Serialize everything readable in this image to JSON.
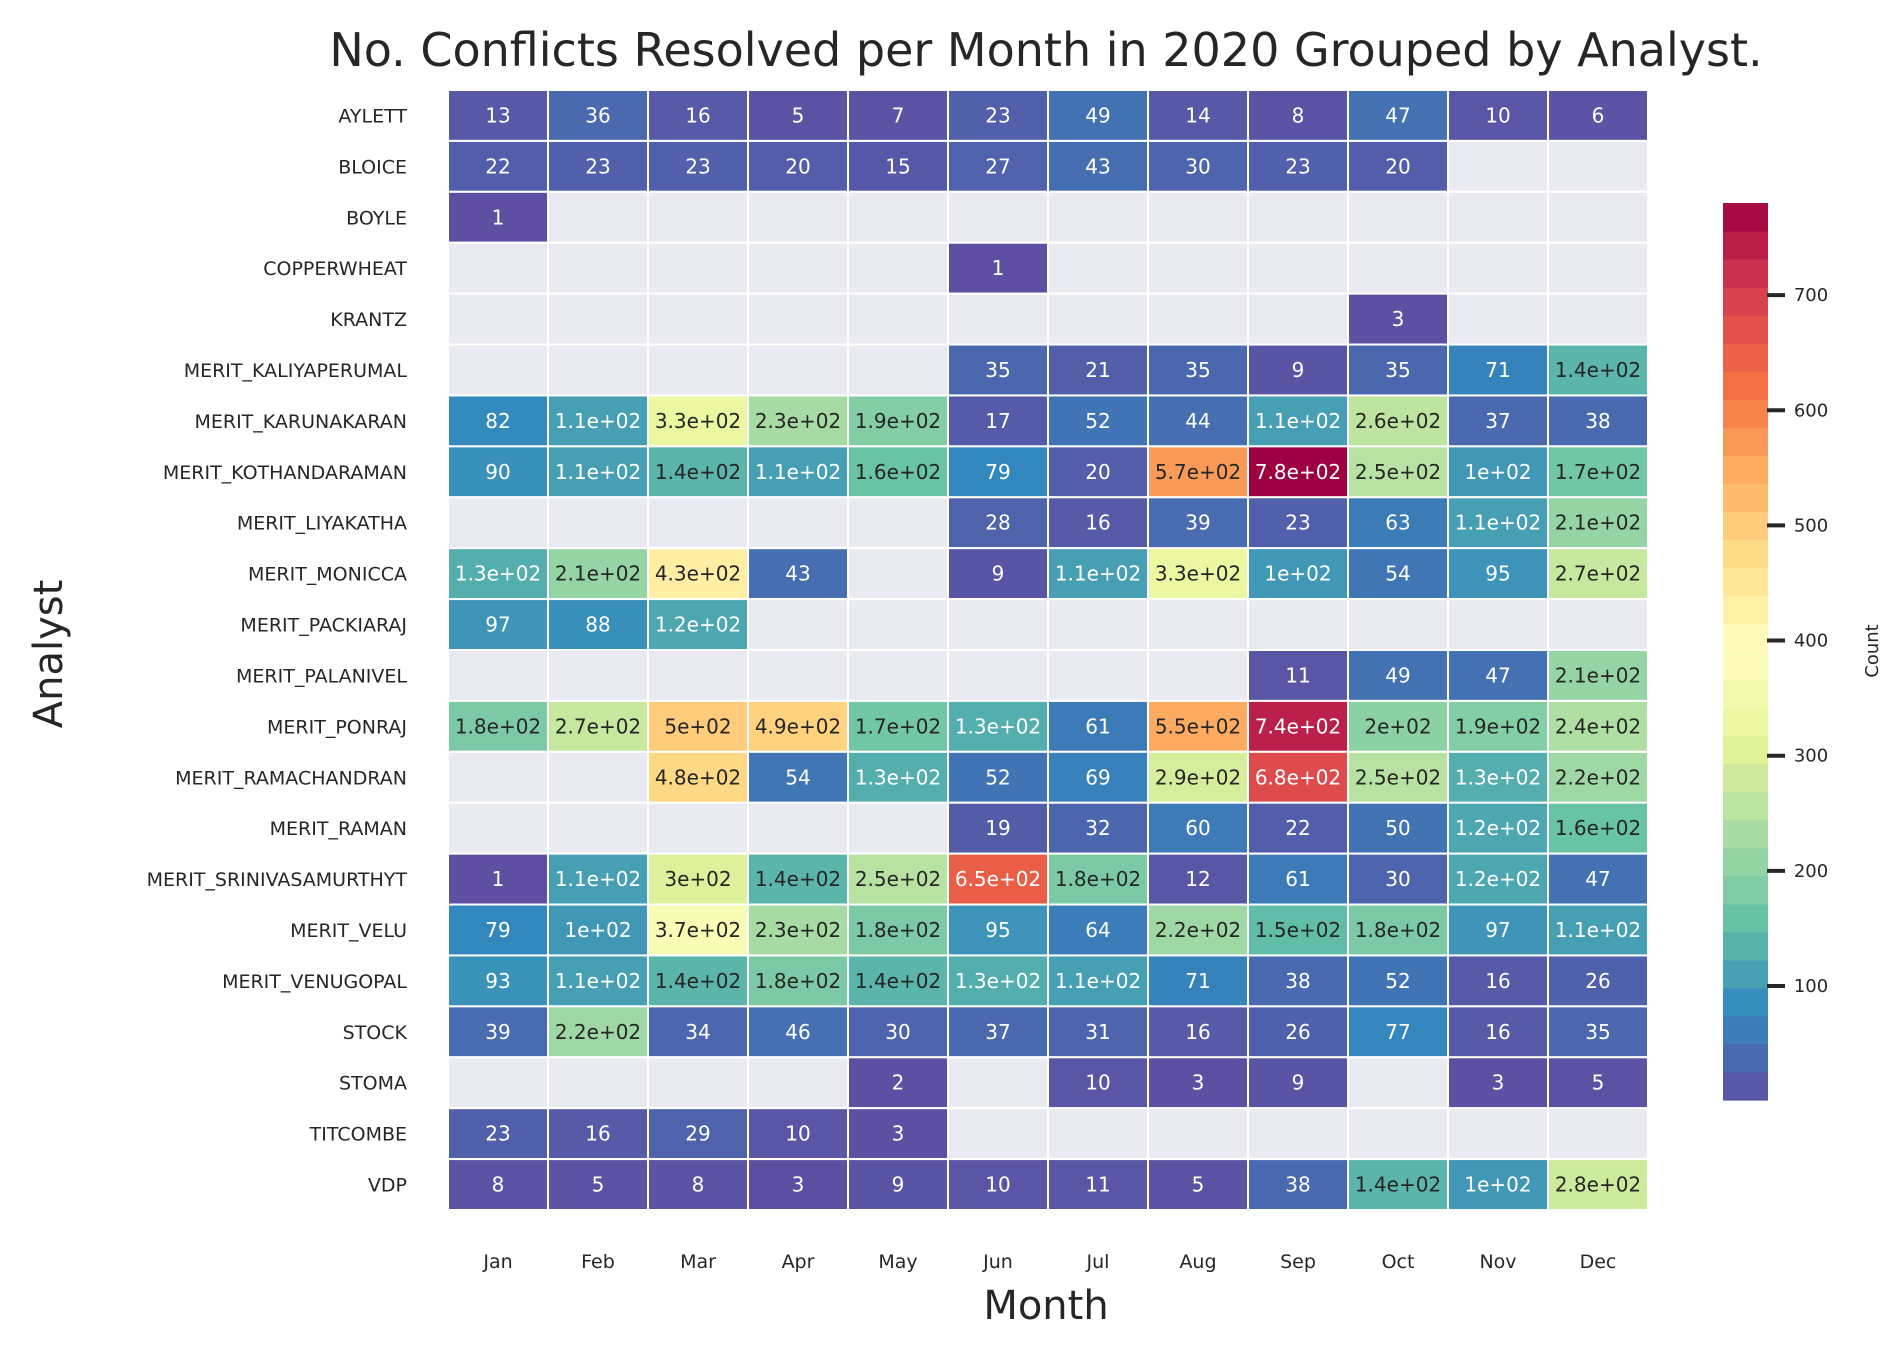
{
  "chart_data": {
    "type": "heatmap",
    "title": "No. Conflicts Resolved per Month in 2020 Grouped by Analyst.",
    "xlabel": "Month",
    "ylabel": "Analyst",
    "colorbar_label": "Count",
    "colorbar_range": [
      1,
      780
    ],
    "colorbar_ticks": [
      100,
      200,
      300,
      400,
      500,
      600,
      700
    ],
    "colorbar_tick_labels": [
      "100",
      "200",
      "300",
      "400",
      "500",
      "600",
      "700"
    ],
    "colormap": "Spectral_r",
    "missing_color": "#eaeaf2",
    "columns": [
      "Jan",
      "Feb",
      "Mar",
      "Apr",
      "May",
      "Jun",
      "Jul",
      "Aug",
      "Sep",
      "Oct",
      "Nov",
      "Dec"
    ],
    "rows": [
      "AYLETT",
      "BLOICE",
      "BOYLE",
      "COPPERWHEAT",
      "KRANTZ",
      "MERIT_KALIYAPERUMAL",
      "MERIT_KARUNAKARAN",
      "MERIT_KOTHANDARAMAN",
      "MERIT_LIYAKATHA",
      "MERIT_MONICCA",
      "MERIT_PACKIARAJ",
      "MERIT_PALANIVEL",
      "MERIT_PONRAJ",
      "MERIT_RAMACHANDRAN",
      "MERIT_RAMAN",
      "MERIT_SRINIVASAMURTHYT",
      "MERIT_VELU",
      "MERIT_VENUGOPAL",
      "STOCK",
      "STOMA",
      "TITCOMBE",
      "VDP"
    ],
    "values": [
      [
        13,
        36,
        16,
        5,
        7,
        23,
        49,
        14,
        8,
        47,
        10,
        6
      ],
      [
        22,
        23,
        23,
        20,
        15,
        27,
        43,
        30,
        23,
        20,
        null,
        null
      ],
      [
        1,
        null,
        null,
        null,
        null,
        null,
        null,
        null,
        null,
        null,
        null,
        null
      ],
      [
        null,
        null,
        null,
        null,
        null,
        1,
        null,
        null,
        null,
        null,
        null,
        null
      ],
      [
        null,
        null,
        null,
        null,
        null,
        null,
        null,
        null,
        null,
        3,
        null,
        null
      ],
      [
        null,
        null,
        null,
        null,
        null,
        35,
        21,
        35,
        9,
        35,
        71,
        140
      ],
      [
        82,
        110,
        330,
        230,
        190,
        17,
        52,
        44,
        110,
        260,
        37,
        38
      ],
      [
        90,
        110,
        140,
        110,
        160,
        79,
        20,
        570,
        780,
        250,
        100,
        170
      ],
      [
        null,
        null,
        null,
        null,
        null,
        28,
        16,
        39,
        23,
        63,
        110,
        210
      ],
      [
        130,
        210,
        430,
        43,
        null,
        9,
        110,
        330,
        100,
        54,
        95,
        270
      ],
      [
        97,
        88,
        120,
        null,
        null,
        null,
        null,
        null,
        null,
        null,
        null,
        null
      ],
      [
        null,
        null,
        null,
        null,
        null,
        null,
        null,
        null,
        11,
        49,
        47,
        210
      ],
      [
        180,
        270,
        500,
        490,
        170,
        130,
        61,
        550,
        740,
        200,
        190,
        240
      ],
      [
        null,
        null,
        480,
        54,
        130,
        52,
        69,
        290,
        680,
        250,
        130,
        220
      ],
      [
        null,
        null,
        null,
        null,
        null,
        19,
        32,
        60,
        22,
        50,
        120,
        160
      ],
      [
        1,
        110,
        300,
        140,
        250,
        650,
        180,
        12,
        61,
        30,
        120,
        47
      ],
      [
        79,
        100,
        370,
        230,
        180,
        95,
        64,
        220,
        150,
        180,
        97,
        110
      ],
      [
        93,
        110,
        140,
        180,
        140,
        130,
        110,
        71,
        38,
        52,
        16,
        26
      ],
      [
        39,
        220,
        34,
        46,
        30,
        37,
        31,
        16,
        26,
        77,
        16,
        35
      ],
      [
        null,
        null,
        null,
        null,
        2,
        null,
        10,
        3,
        9,
        null,
        3,
        5
      ],
      [
        23,
        16,
        29,
        10,
        3,
        null,
        null,
        null,
        null,
        null,
        null,
        null
      ],
      [
        8,
        5,
        8,
        3,
        9,
        10,
        11,
        5,
        38,
        140,
        100,
        280
      ]
    ],
    "labels": [
      [
        "13",
        "36",
        "16",
        "5",
        "7",
        "23",
        "49",
        "14",
        "8",
        "47",
        "10",
        "6"
      ],
      [
        "22",
        "23",
        "23",
        "20",
        "15",
        "27",
        "43",
        "30",
        "23",
        "20",
        "",
        ""
      ],
      [
        "1",
        "",
        "",
        "",
        "",
        "",
        "",
        "",
        "",
        "",
        "",
        ""
      ],
      [
        "",
        "",
        "",
        "",
        "",
        "1",
        "",
        "",
        "",
        "",
        "",
        ""
      ],
      [
        "",
        "",
        "",
        "",
        "",
        "",
        "",
        "",
        "",
        "3",
        "",
        ""
      ],
      [
        "",
        "",
        "",
        "",
        "",
        "35",
        "21",
        "35",
        "9",
        "35",
        "71",
        "1.4e+02"
      ],
      [
        "82",
        "1.1e+02",
        "3.3e+02",
        "2.3e+02",
        "1.9e+02",
        "17",
        "52",
        "44",
        "1.1e+02",
        "2.6e+02",
        "37",
        "38"
      ],
      [
        "90",
        "1.1e+02",
        "1.4e+02",
        "1.1e+02",
        "1.6e+02",
        "79",
        "20",
        "5.7e+02",
        "7.8e+02",
        "2.5e+02",
        "1e+02",
        "1.7e+02"
      ],
      [
        "",
        "",
        "",
        "",
        "",
        "28",
        "16",
        "39",
        "23",
        "63",
        "1.1e+02",
        "2.1e+02"
      ],
      [
        "1.3e+02",
        "2.1e+02",
        "4.3e+02",
        "43",
        "",
        "9",
        "1.1e+02",
        "3.3e+02",
        "1e+02",
        "54",
        "95",
        "2.7e+02"
      ],
      [
        "97",
        "88",
        "1.2e+02",
        "",
        "",
        "",
        "",
        "",
        "",
        "",
        "",
        ""
      ],
      [
        "",
        "",
        "",
        "",
        "",
        "",
        "",
        "",
        "11",
        "49",
        "47",
        "2.1e+02"
      ],
      [
        "1.8e+02",
        "2.7e+02",
        "5e+02",
        "4.9e+02",
        "1.7e+02",
        "1.3e+02",
        "61",
        "5.5e+02",
        "7.4e+02",
        "2e+02",
        "1.9e+02",
        "2.4e+02"
      ],
      [
        "",
        "",
        "4.8e+02",
        "54",
        "1.3e+02",
        "52",
        "69",
        "2.9e+02",
        "6.8e+02",
        "2.5e+02",
        "1.3e+02",
        "2.2e+02"
      ],
      [
        "",
        "",
        "",
        "",
        "",
        "19",
        "32",
        "60",
        "22",
        "50",
        "1.2e+02",
        "1.6e+02"
      ],
      [
        "1",
        "1.1e+02",
        "3e+02",
        "1.4e+02",
        "2.5e+02",
        "6.5e+02",
        "1.8e+02",
        "12",
        "61",
        "30",
        "1.2e+02",
        "47"
      ],
      [
        "79",
        "1e+02",
        "3.7e+02",
        "2.3e+02",
        "1.8e+02",
        "95",
        "64",
        "2.2e+02",
        "1.5e+02",
        "1.8e+02",
        "97",
        "1.1e+02"
      ],
      [
        "93",
        "1.1e+02",
        "1.4e+02",
        "1.8e+02",
        "1.4e+02",
        "1.3e+02",
        "1.1e+02",
        "71",
        "38",
        "52",
        "16",
        "26"
      ],
      [
        "39",
        "2.2e+02",
        "34",
        "46",
        "30",
        "37",
        "31",
        "16",
        "26",
        "77",
        "16",
        "35"
      ],
      [
        "",
        "",
        "",
        "",
        "2",
        "",
        "10",
        "3",
        "9",
        "",
        "3",
        "5"
      ],
      [
        "23",
        "16",
        "29",
        "10",
        "3",
        "",
        "",
        "",
        "",
        "",
        "",
        ""
      ],
      [
        "8",
        "5",
        "8",
        "3",
        "9",
        "10",
        "11",
        "5",
        "38",
        "1.4e+02",
        "1e+02",
        "2.8e+02"
      ]
    ]
  }
}
